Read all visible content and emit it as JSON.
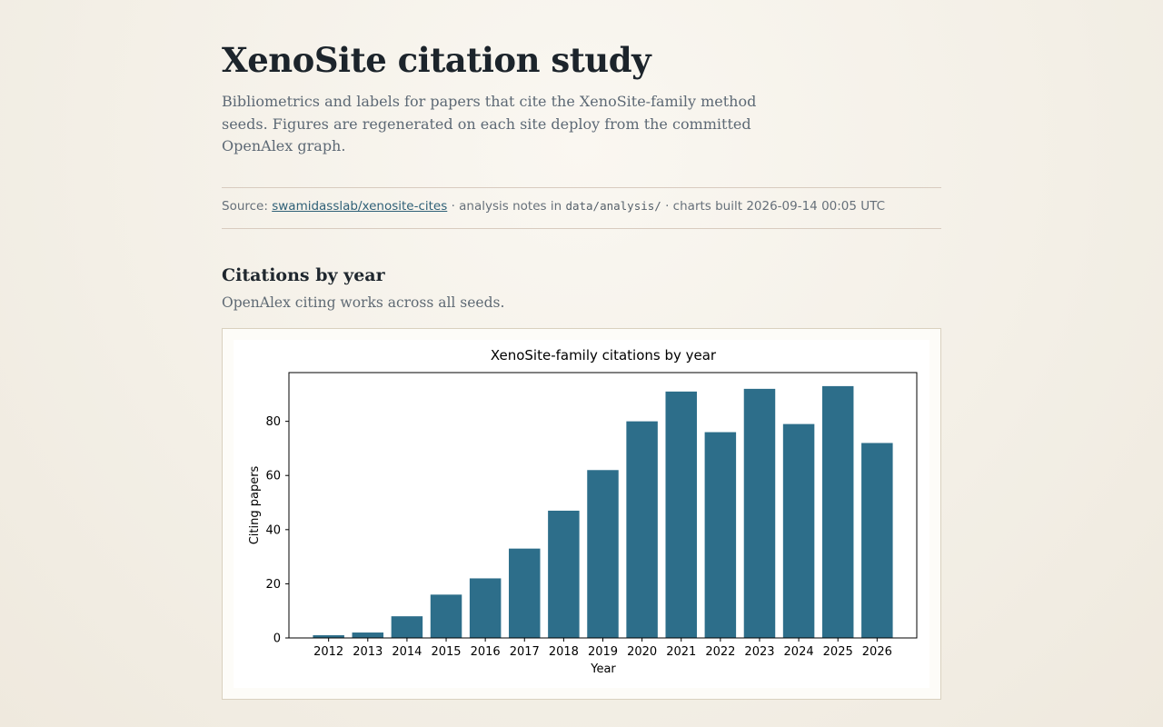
{
  "header": {
    "title": "XenoSite citation study",
    "subtitle": "Bibliometrics and labels for papers that cite the XenoSite-family method seeds. Figures are regenerated on each site deploy from the committed OpenAlex graph."
  },
  "source": {
    "prefix": "Source: ",
    "link_text": "swamidasslab/xenosite-cites",
    "notes_prefix": " · analysis notes in ",
    "notes_path": "data/analysis/",
    "built_text": " · charts built 2026-09-14 00:05 UTC"
  },
  "section": {
    "title": "Citations by year",
    "subtitle": "OpenAlex citing works across all seeds."
  },
  "colors": {
    "bar": "#2d6e8a",
    "axis": "#000000"
  },
  "chart_data": {
    "type": "bar",
    "title": "XenoSite-family citations by year",
    "xlabel": "Year",
    "ylabel": "Citing papers",
    "categories": [
      "2012",
      "2013",
      "2014",
      "2015",
      "2016",
      "2017",
      "2018",
      "2019",
      "2020",
      "2021",
      "2022",
      "2023",
      "2024",
      "2025",
      "2026"
    ],
    "values": [
      1,
      2,
      8,
      16,
      22,
      33,
      47,
      62,
      80,
      91,
      76,
      92,
      79,
      93,
      72
    ],
    "ylim": [
      0,
      98
    ],
    "yticks": [
      0,
      20,
      40,
      60,
      80
    ],
    "grid": false,
    "legend": "none"
  }
}
